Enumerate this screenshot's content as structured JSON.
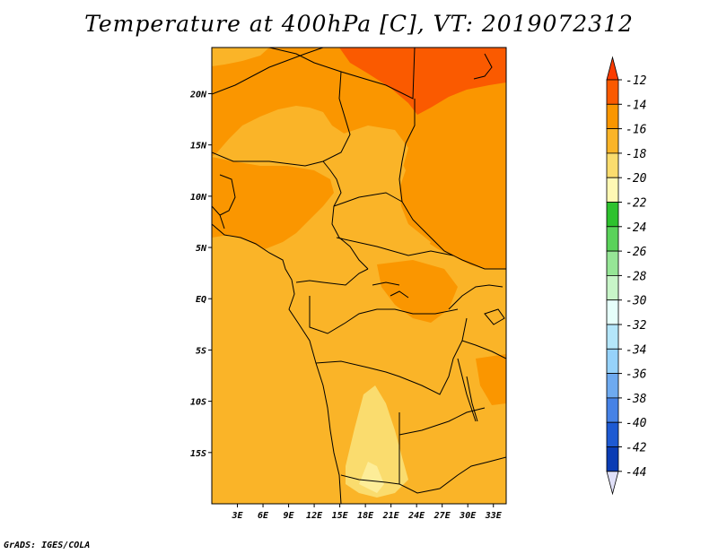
{
  "title": "Temperature at 400hPa [C], VT: 2019072312",
  "credit": "GrADS: IGES/COLA",
  "map": {
    "lon_range": [
      0,
      34.5
    ],
    "lat_range": [
      -20,
      24.5
    ],
    "lon_ticks": [
      "3E",
      "6E",
      "9E",
      "12E",
      "15E",
      "18E",
      "21E",
      "24E",
      "27E",
      "30E",
      "33E"
    ],
    "lat_ticks": [
      "20N",
      "15N",
      "10N",
      "5N",
      "EQ",
      "5S",
      "10S",
      "15S"
    ]
  },
  "legend": {
    "labels": [
      "-12",
      "-14",
      "-16",
      "-18",
      "-20",
      "-22",
      "-24",
      "-26",
      "-28",
      "-30",
      "-32",
      "-34",
      "-36",
      "-38",
      "-40",
      "-42",
      "-44"
    ],
    "colors": [
      "#fa5a00",
      "#fa9600",
      "#fab428",
      "#fadc6e",
      "#fff8b4",
      "#2ec22e",
      "#5ad25a",
      "#96e696",
      "#c8f5c8",
      "#e6fffa",
      "#b4e6fa",
      "#96d2fa",
      "#6eaaf0",
      "#4682e6",
      "#1e5ad2",
      "#0a3cb4",
      "#0a1478"
    ],
    "top_color": "#fa3c00",
    "bottom_color": "#e0e0f8"
  }
}
